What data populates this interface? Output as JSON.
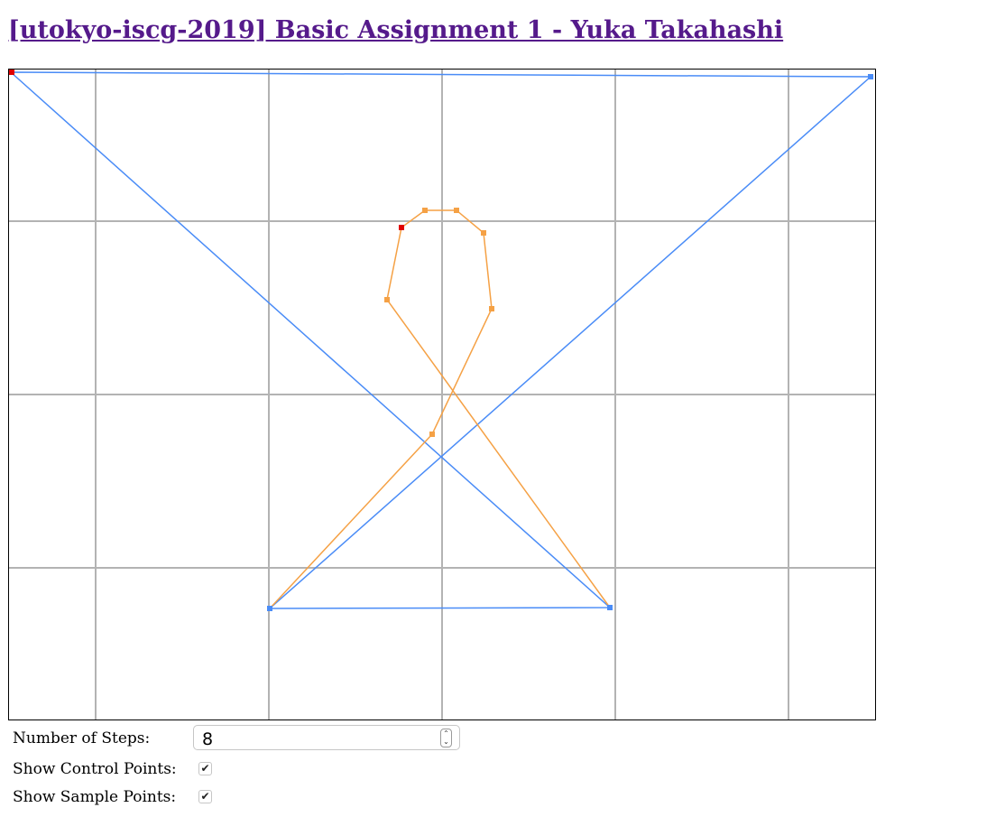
{
  "page": {
    "title": "[utokyo-iscg-2019] Basic Assignment 1 - Yuka Takahashi",
    "title_color": "#551a8b"
  },
  "canvas": {
    "grid_color": "#b3b3b3",
    "control_polygon_color": "#4a8cf7",
    "curve_color": "#f5a145",
    "selected_point_color": "#e00000"
  },
  "controls": {
    "steps_label": "Number of Steps:",
    "steps_value": "8",
    "show_control_points_label": "Show Control Points:",
    "show_control_points_checked": true,
    "show_sample_points_label": "Show Sample Points:",
    "show_sample_points_checked": true
  },
  "icons": {
    "spinner": "spinner-arrows-icon",
    "checkmark": "checkmark-icon"
  }
}
